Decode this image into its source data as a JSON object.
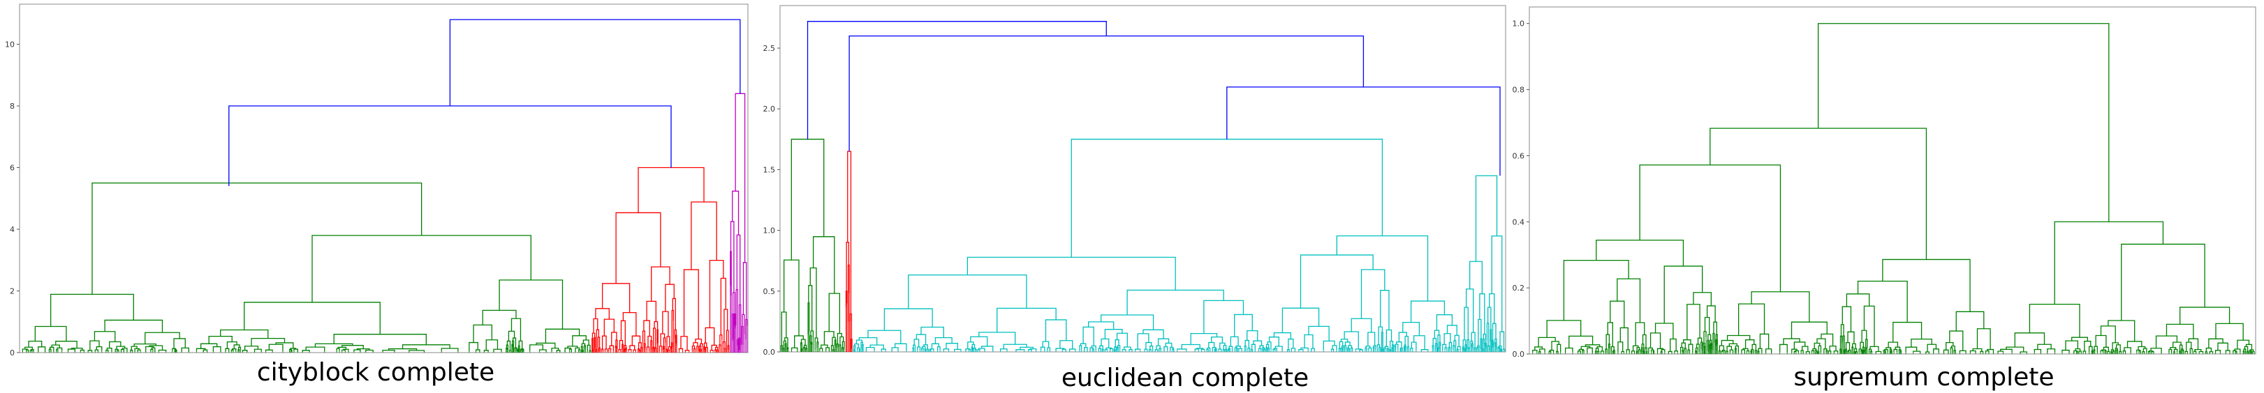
{
  "colors": {
    "blue": "#0000ff",
    "green": "#008000",
    "red": "#ff0000",
    "magenta": "#bf00bf",
    "cyan": "#00bfbf"
  },
  "chart_data": [
    {
      "type": "dendrogram",
      "caption": "cityblock complete",
      "ylim": [
        0,
        11.3
      ],
      "yticks": [
        "0",
        "2",
        "4",
        "6",
        "8",
        "10"
      ],
      "ytick_values": [
        0,
        2,
        4,
        6,
        8,
        10
      ],
      "root_height": 10.8,
      "clusters": [
        {
          "color": "green",
          "span": [
            0,
            0.785
          ],
          "height": 5.5,
          "top_link_height": 8.0
        },
        {
          "color": "red",
          "span": [
            0.785,
            0.975
          ],
          "height": 6.0
        },
        {
          "color": "magenta",
          "span": [
            0.975,
            1.0
          ],
          "height": 8.4
        }
      ]
    },
    {
      "type": "dendrogram",
      "caption": "euclidean complete",
      "ylim": [
        0,
        2.85
      ],
      "yticks": [
        "0.0",
        "0.5",
        "1.0",
        "1.5",
        "2.0",
        "2.5"
      ],
      "ytick_values": [
        0,
        0.5,
        1.0,
        1.5,
        2.0,
        2.5
      ],
      "root_height": 2.72,
      "clusters": [
        {
          "color": "green",
          "span": [
            0,
            0.09
          ],
          "height": 1.75
        },
        {
          "color": "red",
          "span": [
            0.09,
            0.1
          ],
          "height": 1.65
        },
        {
          "color": "cyan",
          "span": [
            0.1,
            0.94
          ],
          "height": 1.75
        },
        {
          "color": "cyan",
          "span": [
            0.94,
            1.0
          ],
          "height": 1.45
        }
      ],
      "blue_links": [
        2.72,
        2.6,
        2.18
      ]
    },
    {
      "type": "dendrogram",
      "caption": "supremum complete",
      "ylim": [
        0,
        1.05
      ],
      "yticks": [
        "0.0",
        "0.2",
        "0.4",
        "0.6",
        "0.8",
        "1.0"
      ],
      "ytick_values": [
        0,
        0.2,
        0.4,
        0.6,
        0.8,
        1.0
      ],
      "root_height": 1.0,
      "clusters": [
        {
          "color": "green",
          "span": [
            0,
            1.0
          ],
          "height": 1.0
        }
      ]
    }
  ]
}
